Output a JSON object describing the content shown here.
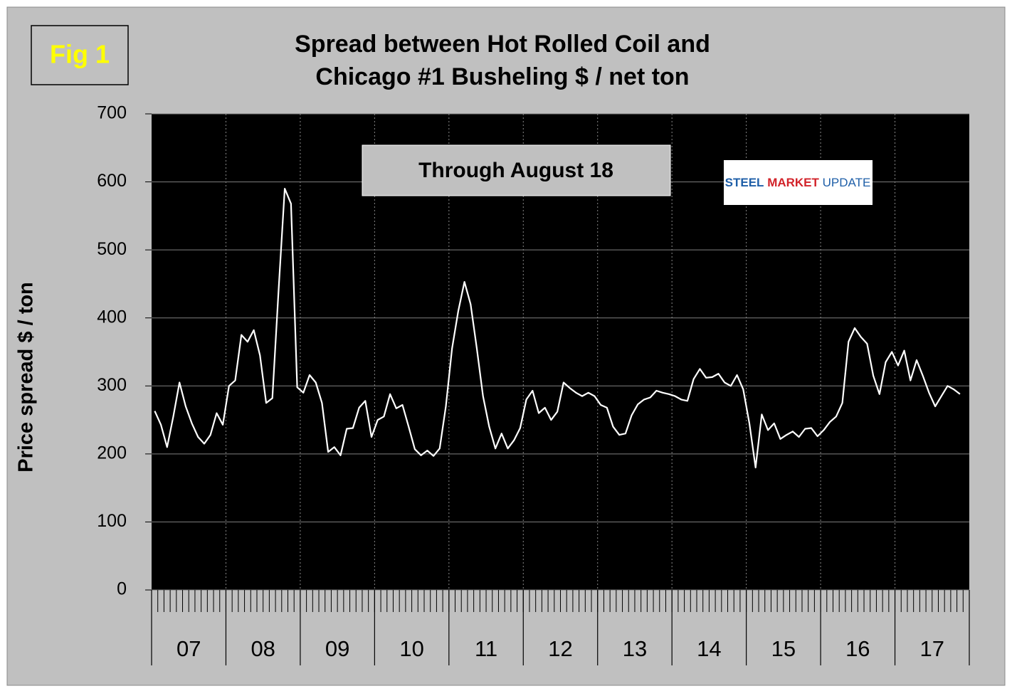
{
  "chart_data": {
    "type": "line",
    "figure_label": "Fig 1",
    "title": [
      "Spread between Hot Rolled Coil and",
      "Chicago #1 Busheling  $ / net ton"
    ],
    "y_label": "Price spread $ / ton",
    "annotation": "Through August 18",
    "logo": [
      "STEEL",
      "MARKET",
      "UPDATE"
    ],
    "year_labels": [
      "07",
      "08",
      "09",
      "10",
      "11",
      "12",
      "13",
      "14",
      "15",
      "16",
      "17"
    ],
    "color": "#ffffff",
    "ylim": [
      0,
      700
    ],
    "yticks": [
      0,
      100,
      200,
      300,
      400,
      500,
      600,
      700
    ],
    "grid": true,
    "values": [
      263,
      243,
      210,
      255,
      305,
      270,
      245,
      225,
      215,
      228,
      260,
      243,
      300,
      308,
      375,
      365,
      382,
      345,
      275,
      282,
      440,
      590,
      568,
      298,
      290,
      316,
      305,
      275,
      203,
      210,
      198,
      237,
      238,
      268,
      278,
      225,
      250,
      255,
      288,
      267,
      272,
      240,
      207,
      198,
      205,
      197,
      208,
      270,
      355,
      410,
      453,
      420,
      355,
      285,
      240,
      208,
      230,
      208,
      220,
      238,
      280,
      293,
      260,
      268,
      250,
      262,
      305,
      297,
      290,
      285,
      290,
      285,
      272,
      268,
      240,
      228,
      230,
      257,
      273,
      280,
      283,
      293,
      290,
      288,
      285,
      280,
      278,
      310,
      325,
      312,
      313,
      318,
      305,
      300,
      316,
      295,
      245,
      180,
      258,
      235,
      245,
      222,
      228,
      233,
      225,
      237,
      238,
      226,
      235,
      247,
      255,
      275,
      365,
      385,
      372,
      362,
      315,
      288,
      335,
      350,
      330,
      352,
      308,
      338,
      315,
      290,
      270,
      285,
      300,
      295,
      288
    ]
  }
}
